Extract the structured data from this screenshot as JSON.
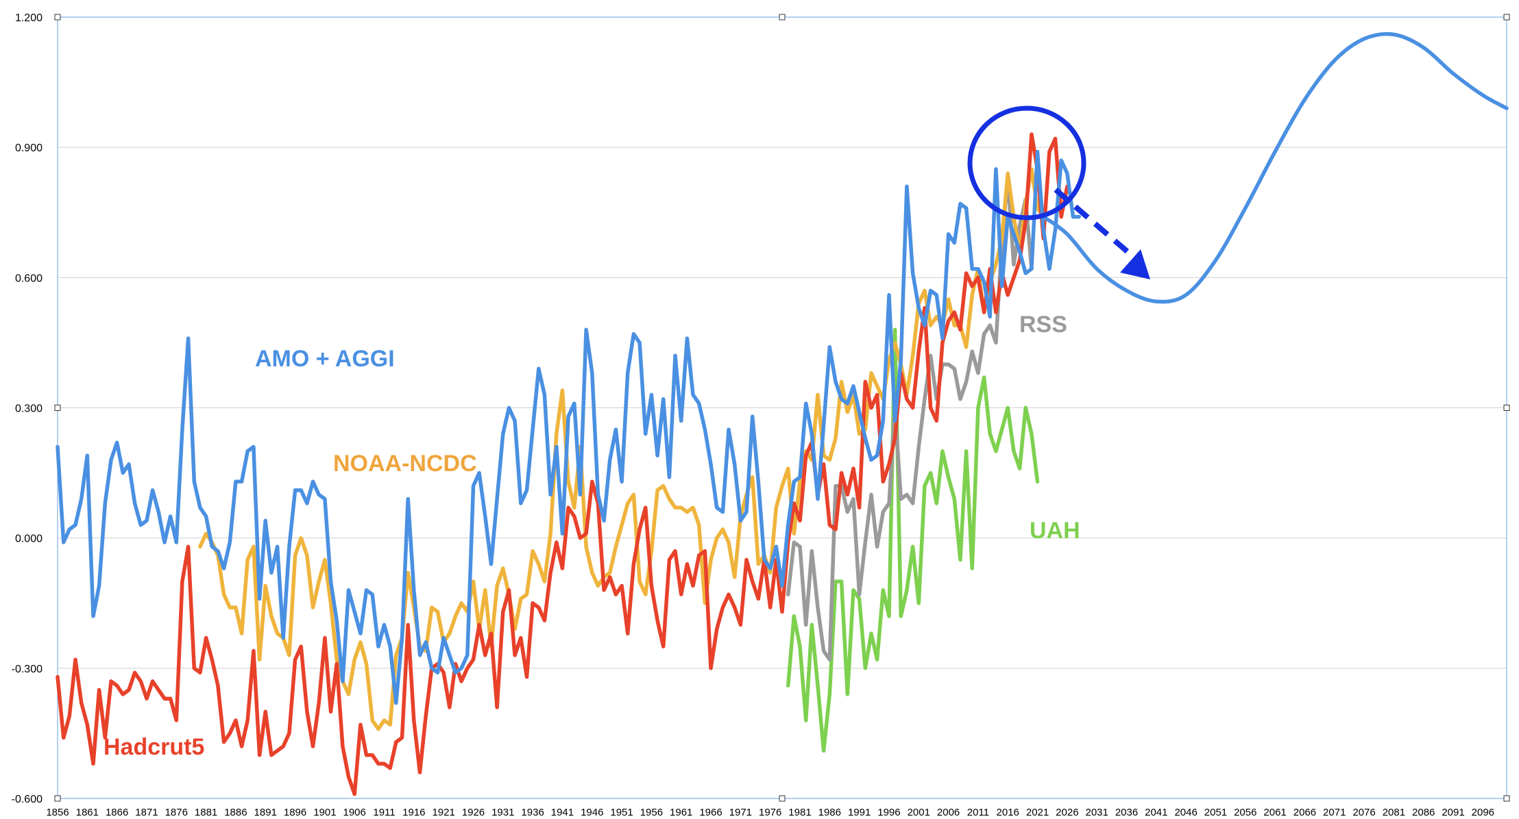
{
  "chart_data": {
    "type": "line",
    "ylim": [
      -0.6,
      1.2
    ],
    "xlim": [
      1856,
      2100
    ],
    "y_ticks": [
      "-0.600",
      "-0.300",
      "0.000",
      "0.300",
      "0.600",
      "0.900",
      "1.200"
    ],
    "x_ticks": [
      "1856",
      "1861",
      "1866",
      "1871",
      "1876",
      "1881",
      "1886",
      "1891",
      "1896",
      "1901",
      "1906",
      "1911",
      "1916",
      "1921",
      "1926",
      "1931",
      "1936",
      "1941",
      "1946",
      "1951",
      "1956",
      "1961",
      "1966",
      "1971",
      "1976",
      "1981",
      "1986",
      "1991",
      "1996",
      "2001",
      "2006",
      "2011",
      "2016",
      "2021",
      "2026",
      "2031",
      "2036",
      "2041",
      "2046",
      "2051",
      "2056",
      "2061",
      "2066",
      "2071",
      "2076",
      "2081",
      "2086",
      "2091",
      "2096"
    ],
    "grid": true,
    "series": [
      {
        "name": "AMO + AGGI",
        "color": "#4A90E2",
        "start_year": 1856,
        "values": [
          0.21,
          -0.01,
          0.02,
          0.03,
          0.09,
          0.19,
          -0.18,
          -0.11,
          0.08,
          0.18,
          0.22,
          0.15,
          0.17,
          0.08,
          0.03,
          0.04,
          0.11,
          0.06,
          -0.01,
          0.05,
          -0.01,
          0.25,
          0.46,
          0.13,
          0.07,
          0.05,
          -0.02,
          -0.03,
          -0.07,
          -0.01,
          0.13,
          0.13,
          0.2,
          0.21,
          -0.14,
          0.04,
          -0.08,
          -0.02,
          -0.23,
          -0.02,
          0.11,
          0.11,
          0.08,
          0.13,
          0.1,
          0.09,
          -0.1,
          -0.19,
          -0.33,
          -0.12,
          -0.17,
          -0.22,
          -0.12,
          -0.13,
          -0.25,
          -0.2,
          -0.25,
          -0.38,
          -0.23,
          0.09,
          -0.12,
          -0.27,
          -0.24,
          -0.3,
          -0.31,
          -0.23,
          -0.27,
          -0.31,
          -0.3,
          -0.27,
          0.12,
          0.15,
          0.05,
          -0.06,
          0.09,
          0.24,
          0.3,
          0.27,
          0.08,
          0.11,
          0.25,
          0.39,
          0.33,
          0.1,
          0.21,
          0.01,
          0.28,
          0.31,
          0.1,
          0.48,
          0.38,
          0.1,
          0.04,
          0.18,
          0.25,
          0.13,
          0.38,
          0.47,
          0.45,
          0.24,
          0.33,
          0.19,
          0.32,
          0.14,
          0.42,
          0.27,
          0.46,
          0.33,
          0.31,
          0.25,
          0.17,
          0.07,
          0.06,
          0.25,
          0.17,
          0.04,
          0.06,
          0.28,
          0.13,
          -0.05,
          -0.07,
          -0.02,
          -0.11,
          0.03,
          0.13,
          0.14,
          0.31,
          0.24,
          0.09,
          0.26,
          0.44,
          0.36,
          0.32,
          0.31,
          0.35,
          0.29,
          0.23,
          0.18,
          0.19,
          0.27,
          0.56,
          0.27,
          0.41,
          0.81,
          0.61,
          0.53,
          0.49,
          0.57,
          0.56,
          0.46,
          0.7,
          0.68,
          0.77,
          0.76,
          0.62,
          0.62,
          0.59,
          0.51,
          0.85,
          0.58,
          0.74,
          0.7,
          0.66,
          0.61,
          0.62,
          0.89,
          0.71,
          0.62,
          0.71,
          0.87,
          0.84,
          0.74,
          0.74
        ],
        "projection": [
          [
            2022,
            0.74
          ],
          [
            2026,
            0.7
          ],
          [
            2031,
            0.62
          ],
          [
            2036,
            0.57
          ],
          [
            2041,
            0.545
          ],
          [
            2046,
            0.56
          ],
          [
            2051,
            0.64
          ],
          [
            2056,
            0.76
          ],
          [
            2061,
            0.89
          ],
          [
            2066,
            1.01
          ],
          [
            2071,
            1.1
          ],
          [
            2076,
            1.15
          ],
          [
            2081,
            1.16
          ],
          [
            2086,
            1.13
          ],
          [
            2091,
            1.07
          ],
          [
            2096,
            1.02
          ],
          [
            2100,
            0.99
          ]
        ]
      },
      {
        "name": "Hadcrut5",
        "color": "#E8412A",
        "start_year": 1856,
        "values": [
          -0.32,
          -0.46,
          -0.41,
          -0.28,
          -0.38,
          -0.43,
          -0.52,
          -0.35,
          -0.46,
          -0.33,
          -0.34,
          -0.36,
          -0.35,
          -0.31,
          -0.33,
          -0.37,
          -0.33,
          -0.35,
          -0.37,
          -0.37,
          -0.42,
          -0.1,
          -0.02,
          -0.3,
          -0.31,
          -0.23,
          -0.28,
          -0.34,
          -0.47,
          -0.45,
          -0.42,
          -0.48,
          -0.42,
          -0.26,
          -0.5,
          -0.4,
          -0.5,
          -0.49,
          -0.48,
          -0.45,
          -0.28,
          -0.25,
          -0.4,
          -0.48,
          -0.38,
          -0.23,
          -0.4,
          -0.29,
          -0.48,
          -0.55,
          -0.59,
          -0.43,
          -0.5,
          -0.5,
          -0.52,
          -0.52,
          -0.53,
          -0.47,
          -0.46,
          -0.2,
          -0.42,
          -0.54,
          -0.41,
          -0.3,
          -0.29,
          -0.31,
          -0.39,
          -0.29,
          -0.33,
          -0.3,
          -0.28,
          -0.2,
          -0.27,
          -0.22,
          -0.39,
          -0.17,
          -0.12,
          -0.27,
          -0.23,
          -0.32,
          -0.15,
          -0.16,
          -0.19,
          -0.08,
          -0.01,
          -0.07,
          0.07,
          0.05,
          0.0,
          0.01,
          0.13,
          0.08,
          -0.12,
          -0.09,
          -0.13,
          -0.11,
          -0.22,
          -0.06,
          0.02,
          0.07,
          -0.11,
          -0.19,
          -0.25,
          -0.05,
          -0.03,
          -0.13,
          -0.06,
          -0.11,
          -0.04,
          -0.03,
          -0.3,
          -0.21,
          -0.16,
          -0.13,
          -0.16,
          -0.2,
          -0.05,
          -0.1,
          -0.14,
          -0.05,
          -0.16,
          -0.05,
          -0.17,
          -0.01,
          0.08,
          0.04,
          0.19,
          0.22,
          0.1,
          0.17,
          0.03,
          0.02,
          0.15,
          0.1,
          0.16,
          0.07,
          0.36,
          0.3,
          0.33,
          0.13,
          0.17,
          0.23,
          0.38,
          0.32,
          0.3,
          0.43,
          0.53,
          0.3,
          0.27,
          0.45,
          0.5,
          0.52,
          0.48,
          0.61,
          0.58,
          0.6,
          0.52,
          0.62,
          0.52,
          0.61,
          0.56,
          0.6,
          0.64,
          0.73,
          0.93,
          0.85,
          0.69,
          0.89,
          0.92,
          0.74,
          0.81
        ]
      },
      {
        "name": "NOAA-NCDC",
        "color": "#EFB43C",
        "start_year": 1880,
        "values": [
          -0.02,
          0.01,
          -0.01,
          -0.04,
          -0.13,
          -0.16,
          -0.16,
          -0.22,
          -0.05,
          -0.02,
          -0.28,
          -0.11,
          -0.18,
          -0.22,
          -0.23,
          -0.27,
          -0.04,
          0.0,
          -0.04,
          -0.16,
          -0.1,
          -0.05,
          -0.15,
          -0.28,
          -0.33,
          -0.36,
          -0.28,
          -0.24,
          -0.29,
          -0.42,
          -0.44,
          -0.42,
          -0.43,
          -0.27,
          -0.23,
          -0.08,
          -0.16,
          -0.25,
          -0.26,
          -0.16,
          -0.17,
          -0.24,
          -0.22,
          -0.18,
          -0.15,
          -0.17,
          -0.1,
          -0.21,
          -0.12,
          -0.25,
          -0.11,
          -0.07,
          -0.13,
          -0.21,
          -0.14,
          -0.13,
          -0.03,
          -0.06,
          -0.1,
          0.01,
          0.24,
          0.34,
          0.13,
          0.07,
          0.21,
          -0.02,
          -0.08,
          -0.11,
          -0.09,
          -0.08,
          -0.02,
          0.03,
          0.08,
          0.1,
          -0.1,
          -0.13,
          -0.03,
          0.11,
          0.12,
          0.09,
          0.07,
          0.07,
          0.06,
          0.07,
          0.03,
          -0.15,
          -0.05,
          0.0,
          0.02,
          -0.01,
          -0.09,
          0.05,
          0.1,
          0.14,
          -0.06,
          -0.04,
          -0.08,
          0.07,
          0.12,
          0.16,
          0.01,
          0.13,
          0.2,
          0.18,
          0.33,
          0.19,
          0.18,
          0.23,
          0.36,
          0.29,
          0.33,
          0.24,
          0.25,
          0.38,
          0.35,
          0.32,
          0.41,
          0.45,
          0.4,
          0.33,
          0.42,
          0.54,
          0.57,
          0.49,
          0.51,
          0.49,
          0.55,
          0.49,
          0.49,
          0.44,
          0.56,
          0.62,
          0.52,
          0.59,
          0.63,
          0.69,
          0.84,
          0.74,
          0.66,
          0.77,
          0.85,
          0.76,
          0.74
        ]
      },
      {
        "name": "RSS",
        "color": "#9A9A9A",
        "start_year": 1979,
        "values": [
          -0.13,
          -0.01,
          -0.02,
          -0.2,
          -0.03,
          -0.16,
          -0.26,
          -0.28,
          0.12,
          0.12,
          0.06,
          0.09,
          -0.13,
          -0.01,
          0.1,
          -0.02,
          0.06,
          0.08,
          0.3,
          0.09,
          0.1,
          0.08,
          0.21,
          0.32,
          0.42,
          0.32,
          0.4,
          0.4,
          0.39,
          0.32,
          0.36,
          0.43,
          0.38,
          0.47,
          0.49,
          0.45,
          0.68,
          0.83,
          0.63,
          0.72,
          0.78,
          0.62
        ]
      },
      {
        "name": "UAH",
        "color": "#7ED04F",
        "start_year": 1979,
        "values": [
          -0.34,
          -0.18,
          -0.25,
          -0.42,
          -0.2,
          -0.34,
          -0.49,
          -0.36,
          -0.1,
          -0.1,
          -0.36,
          -0.12,
          -0.14,
          -0.3,
          -0.22,
          -0.28,
          -0.12,
          -0.18,
          0.48,
          -0.18,
          -0.12,
          -0.02,
          -0.15,
          0.12,
          0.15,
          0.08,
          0.2,
          0.14,
          0.09,
          -0.05,
          0.2,
          -0.07,
          0.3,
          0.37,
          0.24,
          0.2,
          0.25,
          0.3,
          0.2,
          0.16,
          0.3,
          0.24,
          0.13
        ]
      }
    ],
    "annotations": {
      "labels": [
        {
          "text": "AMO + AGGI",
          "series": "AMO + AGGI"
        },
        {
          "text": "NOAA-NCDC",
          "series": "NOAA-NCDC"
        },
        {
          "text": "Hadcrut5",
          "series": "Hadcrut5"
        },
        {
          "text": "RSS",
          "series": "RSS"
        },
        {
          "text": "UAH",
          "series": "UAH"
        }
      ],
      "circle_color": "#1530E0",
      "arrow_color": "#1530E0"
    }
  }
}
